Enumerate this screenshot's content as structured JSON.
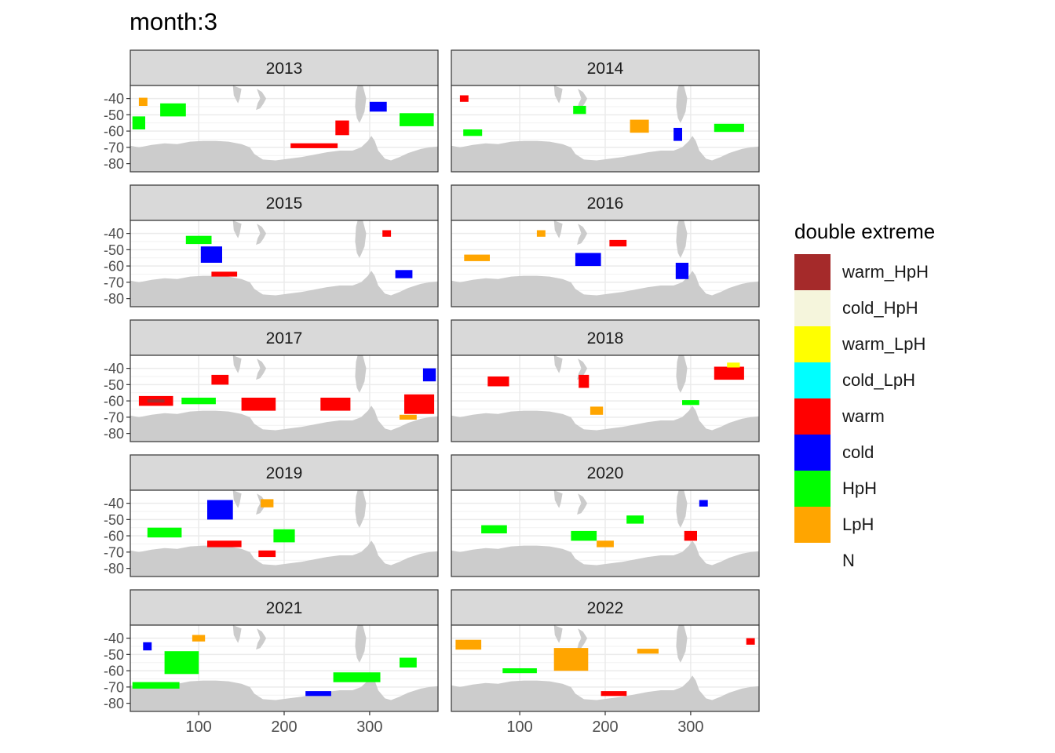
{
  "chart_data": {
    "type": "heatmap",
    "title": "month:3",
    "xlabel": "",
    "ylabel": "",
    "xlim": [
      20,
      380
    ],
    "ylim": [
      -85,
      -32
    ],
    "x_ticks": [
      "100",
      "200",
      "300"
    ],
    "y_ticks": [
      "-40",
      "-50",
      "-60",
      "-70",
      "-80"
    ],
    "grid": true,
    "legend_position": "right",
    "facet_labels": [
      "2013",
      "2014",
      "2015",
      "2016",
      "2017",
      "2018",
      "2019",
      "2020",
      "2021",
      "2022"
    ],
    "legend": {
      "title": "double extreme",
      "entries": [
        {
          "label": "warm_HpH",
          "color": "#A52A2A"
        },
        {
          "label": "cold_HpH",
          "color": "#F5F5DC"
        },
        {
          "label": "warm_LpH",
          "color": "#FFFF00"
        },
        {
          "label": "cold_LpH",
          "color": "#00FFFF"
        },
        {
          "label": "warm",
          "color": "#FF0000"
        },
        {
          "label": "cold",
          "color": "#0000FF"
        },
        {
          "label": "HpH",
          "color": "#00FF00"
        },
        {
          "label": "LpH",
          "color": "#FFA500"
        },
        {
          "label": "N",
          "color": "#FFFFFF"
        }
      ]
    },
    "panels": [
      {
        "year": "2013",
        "patches": [
          {
            "category": "warm",
            "lon": 268,
            "lat": -58,
            "w": 16,
            "h": 9
          },
          {
            "category": "warm",
            "lon": 235,
            "lat": -69,
            "w": 55,
            "h": 3
          },
          {
            "category": "HpH",
            "lon": 70,
            "lat": -47,
            "w": 30,
            "h": 8
          },
          {
            "category": "HpH",
            "lon": 355,
            "lat": -53,
            "w": 40,
            "h": 8
          },
          {
            "category": "HpH",
            "lon": 30,
            "lat": -55,
            "w": 15,
            "h": 8
          },
          {
            "category": "cold",
            "lon": 310,
            "lat": -45,
            "w": 20,
            "h": 6
          },
          {
            "category": "LpH",
            "lon": 35,
            "lat": -42,
            "w": 10,
            "h": 5
          }
        ]
      },
      {
        "year": "2014",
        "patches": [
          {
            "category": "LpH",
            "lon": 240,
            "lat": -57,
            "w": 22,
            "h": 8
          },
          {
            "category": "HpH",
            "lon": 45,
            "lat": -61,
            "w": 22,
            "h": 4
          },
          {
            "category": "HpH",
            "lon": 170,
            "lat": -47,
            "w": 15,
            "h": 5
          },
          {
            "category": "cold",
            "lon": 285,
            "lat": -62,
            "w": 10,
            "h": 8
          },
          {
            "category": "warm",
            "lon": 35,
            "lat": -40,
            "w": 10,
            "h": 4
          },
          {
            "category": "HpH",
            "lon": 345,
            "lat": -58,
            "w": 35,
            "h": 5
          }
        ]
      },
      {
        "year": "2015",
        "patches": [
          {
            "category": "cold",
            "lon": 115,
            "lat": -53,
            "w": 25,
            "h": 10
          },
          {
            "category": "warm",
            "lon": 130,
            "lat": -65,
            "w": 30,
            "h": 3
          },
          {
            "category": "cold",
            "lon": 340,
            "lat": -65,
            "w": 20,
            "h": 5
          },
          {
            "category": "HpH",
            "lon": 100,
            "lat": -44,
            "w": 30,
            "h": 5
          },
          {
            "category": "warm",
            "lon": 320,
            "lat": -40,
            "w": 10,
            "h": 4
          }
        ]
      },
      {
        "year": "2016",
        "patches": [
          {
            "category": "cold",
            "lon": 180,
            "lat": -56,
            "w": 30,
            "h": 8
          },
          {
            "category": "cold",
            "lon": 290,
            "lat": -63,
            "w": 15,
            "h": 10
          },
          {
            "category": "warm",
            "lon": 215,
            "lat": -46,
            "w": 20,
            "h": 4
          },
          {
            "category": "LpH",
            "lon": 50,
            "lat": -55,
            "w": 30,
            "h": 4
          },
          {
            "category": "LpH",
            "lon": 125,
            "lat": -40,
            "w": 10,
            "h": 4
          }
        ]
      },
      {
        "year": "2017",
        "patches": [
          {
            "category": "warm",
            "lon": 170,
            "lat": -62,
            "w": 40,
            "h": 8
          },
          {
            "category": "warm",
            "lon": 358,
            "lat": -62,
            "w": 35,
            "h": 12
          },
          {
            "category": "warm",
            "lon": 260,
            "lat": -62,
            "w": 35,
            "h": 8
          },
          {
            "category": "warm",
            "lon": 50,
            "lat": -60,
            "w": 40,
            "h": 6
          },
          {
            "category": "warm",
            "lon": 125,
            "lat": -47,
            "w": 20,
            "h": 6
          },
          {
            "category": "HpH",
            "lon": 100,
            "lat": -60,
            "w": 40,
            "h": 4
          },
          {
            "category": "LpH",
            "lon": 345,
            "lat": -70,
            "w": 20,
            "h": 3
          },
          {
            "category": "warm_HpH",
            "lon": 50,
            "lat": -60,
            "w": 20,
            "h": 2
          },
          {
            "category": "cold",
            "lon": 370,
            "lat": -44,
            "w": 15,
            "h": 8
          }
        ]
      },
      {
        "year": "2018",
        "patches": [
          {
            "category": "warm",
            "lon": 345,
            "lat": -43,
            "w": 35,
            "h": 8
          },
          {
            "category": "warm",
            "lon": 175,
            "lat": -48,
            "w": 12,
            "h": 8
          },
          {
            "category": "warm_LpH",
            "lon": 350,
            "lat": -38,
            "w": 15,
            "h": 3
          },
          {
            "category": "warm",
            "lon": 75,
            "lat": -48,
            "w": 25,
            "h": 6
          },
          {
            "category": "LpH",
            "lon": 190,
            "lat": -66,
            "w": 15,
            "h": 5
          },
          {
            "category": "HpH",
            "lon": 300,
            "lat": -61,
            "w": 20,
            "h": 3
          }
        ]
      },
      {
        "year": "2019",
        "patches": [
          {
            "category": "cold",
            "lon": 125,
            "lat": -44,
            "w": 30,
            "h": 12
          },
          {
            "category": "HpH",
            "lon": 200,
            "lat": -60,
            "w": 25,
            "h": 8
          },
          {
            "category": "warm",
            "lon": 130,
            "lat": -65,
            "w": 40,
            "h": 4
          },
          {
            "category": "warm",
            "lon": 180,
            "lat": -71,
            "w": 20,
            "h": 4
          },
          {
            "category": "HpH",
            "lon": 60,
            "lat": -58,
            "w": 40,
            "h": 6
          },
          {
            "category": "LpH",
            "lon": 180,
            "lat": -40,
            "w": 15,
            "h": 5
          }
        ]
      },
      {
        "year": "2020",
        "patches": [
          {
            "category": "HpH",
            "lon": 175,
            "lat": -60,
            "w": 30,
            "h": 6
          },
          {
            "category": "warm",
            "lon": 300,
            "lat": -60,
            "w": 15,
            "h": 6
          },
          {
            "category": "HpH",
            "lon": 235,
            "lat": -50,
            "w": 20,
            "h": 5
          },
          {
            "category": "LpH",
            "lon": 200,
            "lat": -65,
            "w": 20,
            "h": 4
          },
          {
            "category": "cold",
            "lon": 315,
            "lat": -40,
            "w": 10,
            "h": 4
          },
          {
            "category": "HpH",
            "lon": 70,
            "lat": -56,
            "w": 30,
            "h": 5
          }
        ]
      },
      {
        "year": "2021",
        "patches": [
          {
            "category": "HpH",
            "lon": 80,
            "lat": -55,
            "w": 40,
            "h": 14
          },
          {
            "category": "HpH",
            "lon": 285,
            "lat": -64,
            "w": 55,
            "h": 6
          },
          {
            "category": "HpH",
            "lon": 50,
            "lat": -69,
            "w": 55,
            "h": 4
          },
          {
            "category": "cold",
            "lon": 240,
            "lat": -74,
            "w": 30,
            "h": 3
          },
          {
            "category": "HpH",
            "lon": 345,
            "lat": -55,
            "w": 20,
            "h": 6
          },
          {
            "category": "LpH",
            "lon": 100,
            "lat": -40,
            "w": 15,
            "h": 4
          },
          {
            "category": "cold",
            "lon": 40,
            "lat": -45,
            "w": 10,
            "h": 5
          }
        ]
      },
      {
        "year": "2022",
        "patches": [
          {
            "category": "LpH",
            "lon": 160,
            "lat": -53,
            "w": 40,
            "h": 14
          },
          {
            "category": "LpH",
            "lon": 40,
            "lat": -44,
            "w": 30,
            "h": 6
          },
          {
            "category": "warm",
            "lon": 210,
            "lat": -74,
            "w": 30,
            "h": 3
          },
          {
            "category": "LpH",
            "lon": 250,
            "lat": -48,
            "w": 25,
            "h": 3
          },
          {
            "category": "HpH",
            "lon": 100,
            "lat": -60,
            "w": 40,
            "h": 3
          },
          {
            "category": "warm",
            "lon": 370,
            "lat": -42,
            "w": 10,
            "h": 4
          }
        ]
      }
    ]
  }
}
